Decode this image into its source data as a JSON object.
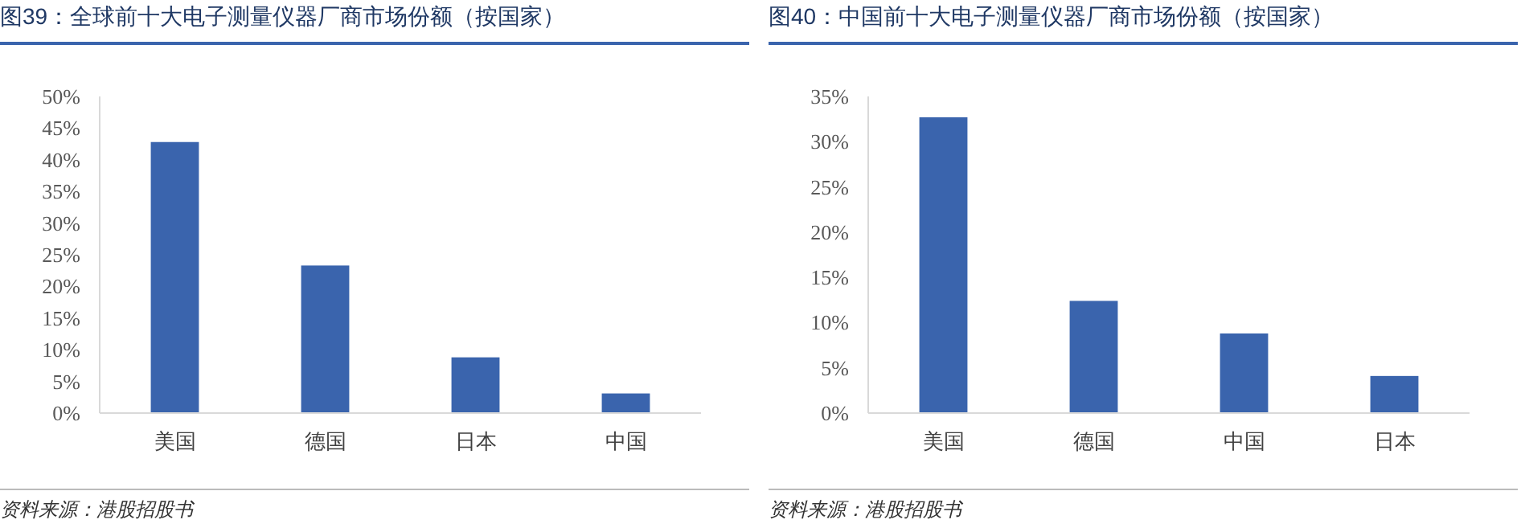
{
  "chart_data": [
    {
      "type": "bar",
      "title": "图39：全球前十大电子测量仪器厂商市场份额（按国家）",
      "categories": [
        "美国",
        "德国",
        "日本",
        "中国"
      ],
      "values": [
        42.8,
        23.3,
        8.8,
        3.1
      ],
      "color": "#3a64ad",
      "ylim": [
        0,
        50
      ],
      "yticks": [
        {
          "value": 0,
          "label": "0%"
        },
        {
          "value": 5,
          "label": "5%"
        },
        {
          "value": 10,
          "label": "10%"
        },
        {
          "value": 15,
          "label": "15%"
        },
        {
          "value": 20,
          "label": "20%"
        },
        {
          "value": 25,
          "label": "25%"
        },
        {
          "value": 30,
          "label": "30%"
        },
        {
          "value": 35,
          "label": "35%"
        },
        {
          "value": 40,
          "label": "40%"
        },
        {
          "value": 45,
          "label": "45%"
        },
        {
          "value": 50,
          "label": "50%"
        }
      ],
      "annotations": [
        "资料来源：港股招股书"
      ]
    },
    {
      "type": "bar",
      "title": "图40：中国前十大电子测量仪器厂商市场份额（按国家）",
      "categories": [
        "美国",
        "德国",
        "中国",
        "日本"
      ],
      "values": [
        32.7,
        12.4,
        8.8,
        4.1
      ],
      "color": "#3a64ad",
      "ylim": [
        0,
        35
      ],
      "yticks": [
        {
          "value": 0,
          "label": "0%"
        },
        {
          "value": 5,
          "label": "5%"
        },
        {
          "value": 10,
          "label": "10%"
        },
        {
          "value": 15,
          "label": "15%"
        },
        {
          "value": 20,
          "label": "20%"
        },
        {
          "value": 25,
          "label": "25%"
        },
        {
          "value": 30,
          "label": "30%"
        },
        {
          "value": 35,
          "label": "35%"
        }
      ],
      "annotations": [
        "资料来源：港股招股书"
      ]
    }
  ]
}
